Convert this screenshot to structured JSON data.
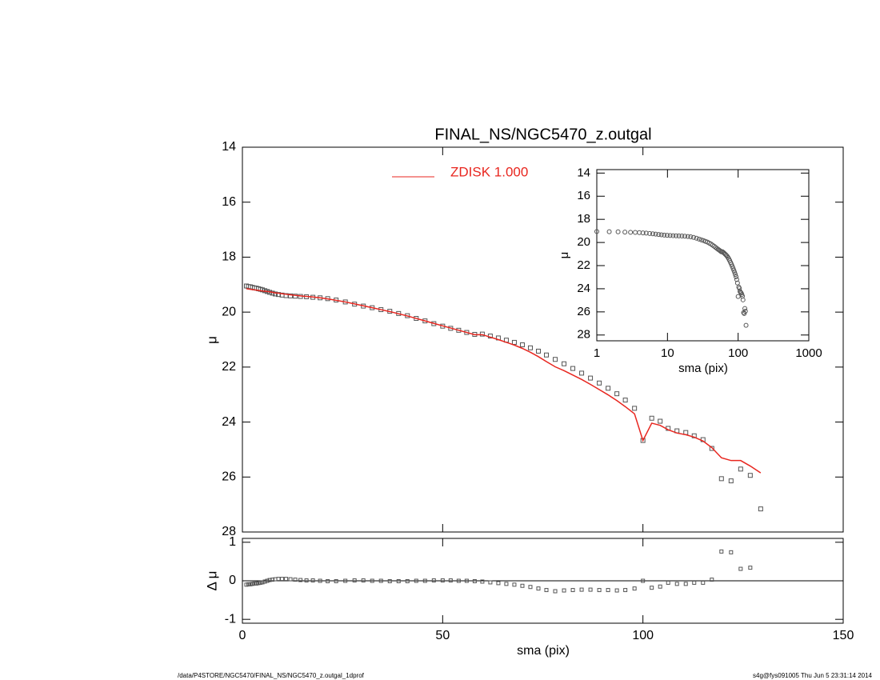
{
  "chart_data": [
    {
      "type": "profile",
      "title": "FINAL_NS/NGC5470_z.outgal",
      "ylabel": "μ",
      "xlim": [
        0,
        150
      ],
      "xticks": [
        0,
        50,
        100,
        150
      ],
      "ylim": [
        28,
        14
      ],
      "yticks": [
        14,
        16,
        18,
        20,
        22,
        24,
        26,
        28
      ],
      "x": [
        1.0,
        1.5,
        2.0,
        2.5,
        3.0,
        3.5,
        4.0,
        4.5,
        5.0,
        5.6,
        6.2,
        6.8,
        7.5,
        8.2,
        9.0,
        9.9,
        10.9,
        12.0,
        13.2,
        14.5,
        16.0,
        17.6,
        19.4,
        21.3,
        23.4,
        25.7,
        28.0,
        30.2,
        32.4,
        34.6,
        36.8,
        39.0,
        41.2,
        43.4,
        45.6,
        47.8,
        50,
        52,
        54,
        56,
        58,
        59.9,
        61.9,
        63.9,
        65.9,
        67.9,
        69.9,
        71.9,
        73.9,
        75.9,
        78.1,
        80.3,
        82.5,
        84.7,
        86.9,
        89.1,
        91.3,
        93.5,
        95.6,
        97.9,
        100,
        102.2,
        104.3,
        106.3,
        108.5,
        110.7,
        112.8,
        115,
        117.2,
        119.6,
        122,
        124.4,
        126.8,
        129.4
      ],
      "series": [
        {
          "mode": "markers",
          "color": "#555555",
          "values": [
            19.05,
            19.07,
            19.08,
            19.1,
            19.12,
            19.13,
            19.15,
            19.17,
            19.19,
            19.22,
            19.25,
            19.28,
            19.31,
            19.34,
            19.36,
            19.38,
            19.4,
            19.41,
            19.42,
            19.43,
            19.44,
            19.46,
            19.48,
            19.51,
            19.56,
            19.63,
            19.71,
            19.78,
            19.84,
            19.91,
            19.97,
            20.05,
            20.13,
            20.23,
            20.32,
            20.42,
            20.51,
            20.59,
            20.66,
            20.74,
            20.81,
            20.8,
            20.87,
            20.94,
            21.02,
            21.1,
            21.19,
            21.3,
            21.42,
            21.56,
            21.72,
            21.88,
            22.05,
            22.22,
            22.4,
            22.58,
            22.77,
            22.97,
            23.2,
            23.5,
            24.67,
            23.86,
            23.97,
            24.23,
            24.32,
            24.38,
            24.5,
            24.64,
            24.96,
            26.06,
            26.14,
            25.71,
            25.94,
            27.16
          ]
        },
        {
          "mode": "line",
          "name": "ZDISK  1.000",
          "color": "#e8261f",
          "values": [
            19.15,
            19.16,
            19.17,
            19.18,
            19.19,
            19.2,
            19.21,
            19.22,
            19.23,
            19.24,
            19.25,
            19.26,
            19.28,
            19.3,
            19.31,
            19.33,
            19.35,
            19.37,
            19.39,
            19.41,
            19.43,
            19.45,
            19.48,
            19.52,
            19.57,
            19.63,
            19.7,
            19.77,
            19.84,
            19.91,
            19.98,
            20.06,
            20.14,
            20.23,
            20.32,
            20.41,
            20.5,
            20.58,
            20.66,
            20.74,
            20.82,
            20.82,
            20.91,
            21.0,
            21.1,
            21.2,
            21.32,
            21.46,
            21.62,
            21.8,
            21.99,
            22.13,
            22.29,
            22.45,
            22.63,
            22.82,
            23.01,
            23.22,
            23.44,
            23.7,
            24.67,
            24.04,
            24.12,
            24.28,
            24.4,
            24.46,
            24.55,
            24.69,
            24.93,
            25.3,
            25.4,
            25.4,
            25.6,
            25.85
          ]
        }
      ]
    },
    {
      "type": "residual",
      "xlabel": "sma (pix)",
      "ylabel": "Δ μ",
      "xlim": [
        0,
        150
      ],
      "xticks": [
        0,
        50,
        100,
        150
      ],
      "ylim": [
        -1.1,
        1.1
      ],
      "yticks": [
        -1,
        0,
        1
      ],
      "color": "#555555",
      "values": [
        -0.1,
        -0.09,
        -0.09,
        -0.08,
        -0.07,
        -0.07,
        -0.06,
        -0.05,
        -0.04,
        -0.02,
        0.0,
        0.02,
        0.03,
        0.04,
        0.05,
        0.05,
        0.05,
        0.04,
        0.03,
        0.02,
        0.01,
        0.01,
        0.0,
        -0.01,
        -0.01,
        0.0,
        0.01,
        0.01,
        0.0,
        0.0,
        -0.01,
        -0.01,
        -0.01,
        0.0,
        0.0,
        0.01,
        0.01,
        0.01,
        0.0,
        0.0,
        -0.01,
        -0.02,
        -0.04,
        -0.06,
        -0.08,
        -0.1,
        -0.13,
        -0.16,
        -0.2,
        -0.24,
        -0.27,
        -0.25,
        -0.24,
        -0.23,
        -0.23,
        -0.24,
        -0.24,
        -0.25,
        -0.24,
        -0.2,
        0.0,
        -0.18,
        -0.15,
        -0.05,
        -0.08,
        -0.08,
        -0.05,
        -0.05,
        0.03,
        0.76,
        0.74,
        0.31,
        0.34,
        null
      ]
    },
    {
      "type": "inset",
      "xlabel": "sma (pix)",
      "ylabel": "μ",
      "xlog": true,
      "xlim": [
        1,
        1000
      ],
      "xticks": [
        1,
        10,
        100,
        1000
      ],
      "ylim": [
        28.5,
        13.7
      ],
      "yticks": [
        14,
        16,
        18,
        20,
        22,
        24,
        26,
        28
      ]
    }
  ],
  "footer": {
    "left": "/data/P4STORE/NGC5470/FINAL_NS/NGC5470_z.outgal_1dprof",
    "right": "s4g@fys091005  Thu Jun  5 23:31:14 2014"
  }
}
